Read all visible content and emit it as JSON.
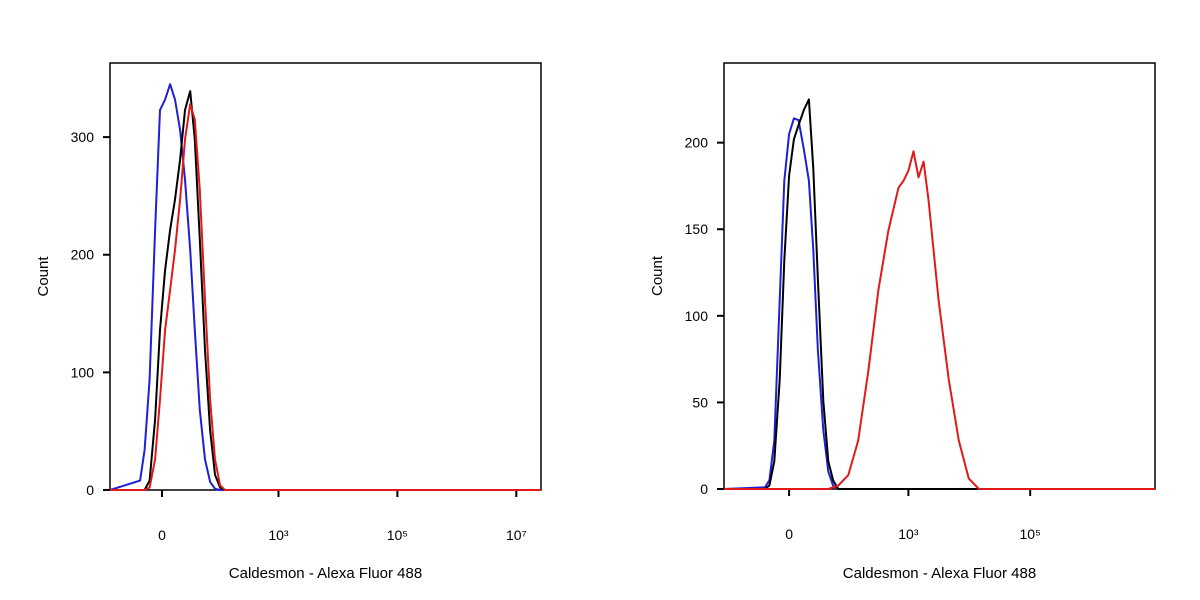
{
  "chart_data": [
    {
      "type": "line",
      "xscale": "biexponential",
      "x_label": "Caldesmon - Alexa Fluor 488",
      "y_label": "Count",
      "x": [
        -81,
        -21,
        -16,
        -11,
        -6,
        -1.7,
        2.6,
        7,
        11.5,
        16.7,
        22.3,
        29,
        36,
        45,
        56,
        69,
        84,
        103,
        125,
        26000000
      ],
      "xlim": [
        -81,
        26000000
      ],
      "xticks": [
        0,
        {
          "value": 1000,
          "label": "10³"
        },
        {
          "value": 100000,
          "label": "10⁵"
        },
        {
          "value": 10000000,
          "label": "10⁷"
        }
      ],
      "ylim": [
        0,
        363
      ],
      "yticks": [
        0,
        100,
        200,
        300
      ],
      "series": [
        {
          "color": "#1f1fd6",
          "values": [
            0,
            8,
            34,
            94,
            221,
            323,
            332,
            345,
            332,
            306,
            264,
            204,
            136,
            68,
            26,
            7,
            1,
            0,
            0,
            0
          ]
        },
        {
          "color": "#000000",
          "values": [
            0,
            0,
            0,
            8,
            60,
            136,
            187,
            221,
            247,
            281,
            323,
            339,
            298,
            213,
            119,
            51,
            13,
            2,
            0,
            0
          ]
        },
        {
          "color": "#e01a1a",
          "values": [
            0,
            0,
            0,
            2,
            26,
            77,
            136,
            170,
            204,
            247,
            298,
            328,
            315,
            255,
            162,
            77,
            26,
            4,
            0,
            0
          ]
        }
      ]
    },
    {
      "type": "line",
      "xscale": "biexponential",
      "x_label": "Caldesmon - Alexa Fluor 488",
      "y_label": "Count",
      "x": [
        -128,
        -23,
        -18,
        -13,
        -8,
        -4,
        0,
        4,
        8,
        13,
        18,
        23,
        29,
        37,
        46,
        56,
        69,
        102,
        149,
        219,
        321,
        468,
        687,
        830,
        1004,
        1214,
        1468,
        1775,
        2142,
        3130,
        4600,
        6720,
        9800,
        14360,
        11200000
      ],
      "xlim": [
        -128,
        11200000
      ],
      "xticks": [
        0,
        {
          "value": 1000,
          "label": "10³"
        },
        {
          "value": 100000,
          "label": "10⁵"
        }
      ],
      "ylim": [
        0,
        246
      ],
      "yticks": [
        0,
        50,
        100,
        150,
        200
      ],
      "series": [
        {
          "color": "#1f1fd6",
          "values": [
            0,
            1,
            5,
            28,
            109,
            178,
            205,
            214,
            213,
            196,
            178,
            138,
            80,
            34,
            10,
            2,
            0,
            0,
            0,
            0,
            0,
            0,
            0,
            0,
            0,
            0,
            0,
            0,
            0,
            0,
            0,
            0,
            0,
            0,
            0
          ]
        },
        {
          "color": "#000000",
          "values": [
            0,
            0,
            2,
            16,
            63,
            132,
            181,
            202,
            210,
            219,
            225,
            185,
            121,
            51,
            16,
            5,
            0,
            0,
            0,
            0,
            0,
            0,
            0,
            0,
            0,
            0,
            0,
            0,
            0,
            0,
            0,
            0,
            0,
            0,
            0
          ]
        },
        {
          "color": "#e01a1a",
          "values": [
            0,
            0,
            0,
            0,
            0,
            0,
            0,
            0,
            0,
            0,
            0,
            0,
            0,
            0,
            0,
            1,
            2,
            8,
            28,
            68,
            115,
            149,
            174,
            178,
            184,
            195,
            180,
            189,
            167,
            109,
            63,
            28,
            6,
            0,
            0
          ]
        }
      ]
    }
  ]
}
